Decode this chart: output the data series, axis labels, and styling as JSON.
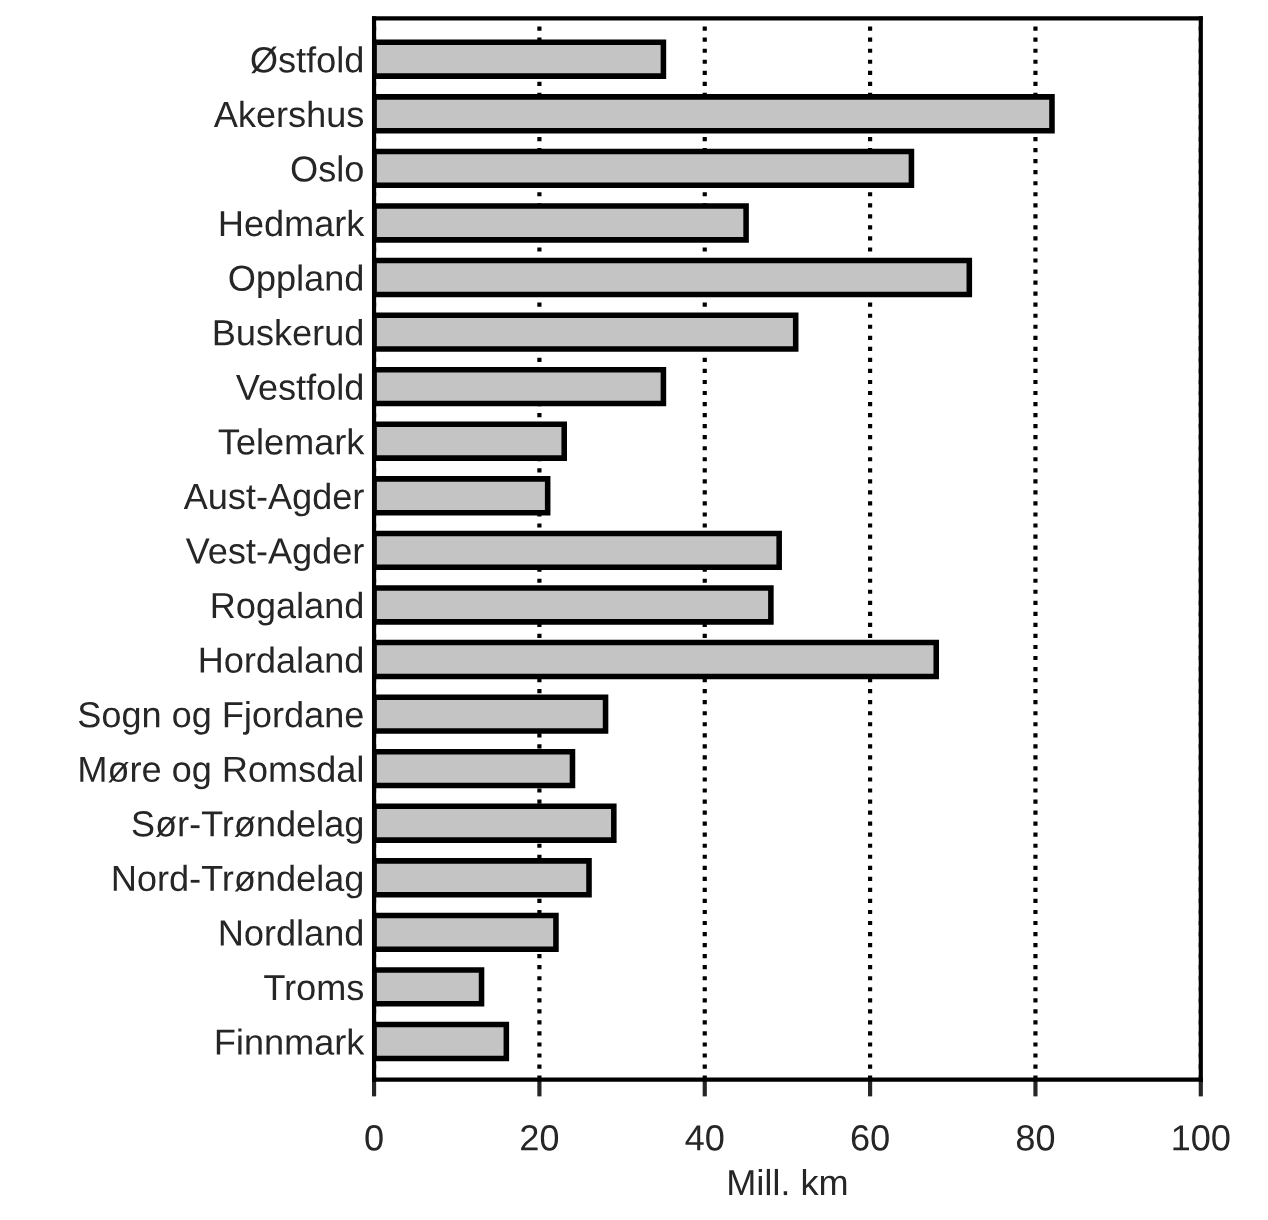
{
  "chart_data": {
    "type": "bar",
    "orientation": "horizontal",
    "xlabel": "Mill. km",
    "categories": [
      "Østfold",
      "Akershus",
      "Oslo",
      "Hedmark",
      "Oppland",
      "Buskerud",
      "Vestfold",
      "Telemark",
      "Aust-Agder",
      "Vest-Agder",
      "Rogaland",
      "Hordaland",
      "Sogn og Fjordane",
      "Møre og Romsdal",
      "Sør-Trøndelag",
      "Nord-Trøndelag",
      "Nordland",
      "Troms",
      "Finnmark"
    ],
    "values": [
      35,
      82,
      65,
      45,
      72,
      51,
      35,
      23,
      21,
      49,
      48,
      68,
      28,
      24,
      29,
      26,
      22,
      13,
      16
    ],
    "color": "#c4c4c4",
    "xlim": [
      0,
      100
    ],
    "xticks": [
      0,
      20,
      40,
      60,
      80,
      100
    ],
    "grid": "x",
    "line_style": "dotted"
  }
}
